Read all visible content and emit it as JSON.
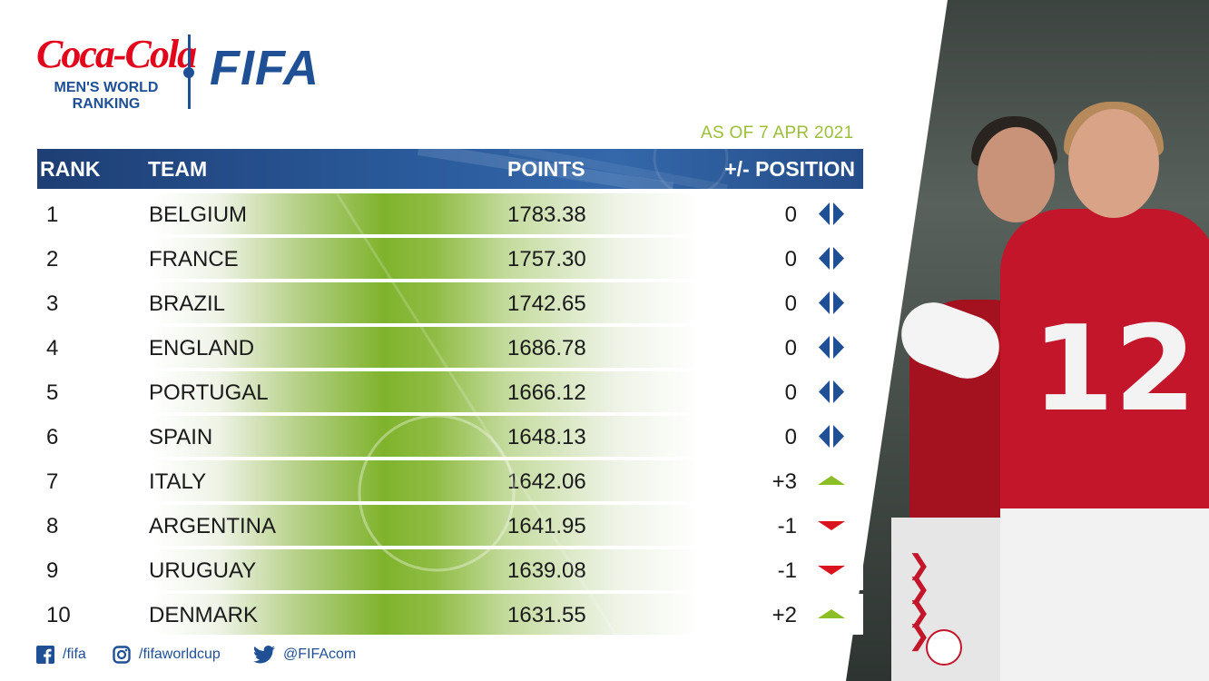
{
  "brand": {
    "sponsor": "Coca-Cola",
    "ranking_line1": "MEN'S WORLD",
    "ranking_line2": "RANKING",
    "org": "FIFA"
  },
  "as_of": "AS OF 7 APR 2021",
  "table": {
    "headers": {
      "rank": "RANK",
      "team": "TEAM",
      "points": "POINTS",
      "change": "+/- POSITION"
    },
    "rows": [
      {
        "rank": "1",
        "team": "BELGIUM",
        "points": "1783.38",
        "change": "0",
        "trend": "same"
      },
      {
        "rank": "2",
        "team": "FRANCE",
        "points": "1757.30",
        "change": "0",
        "trend": "same"
      },
      {
        "rank": "3",
        "team": "BRAZIL",
        "points": "1742.65",
        "change": "0",
        "trend": "same"
      },
      {
        "rank": "4",
        "team": "ENGLAND",
        "points": "1686.78",
        "change": "0",
        "trend": "same"
      },
      {
        "rank": "5",
        "team": "PORTUGAL",
        "points": "1666.12",
        "change": "0",
        "trend": "same"
      },
      {
        "rank": "6",
        "team": "SPAIN",
        "points": "1648.13",
        "change": "0",
        "trend": "same"
      },
      {
        "rank": "7",
        "team": "ITALY",
        "points": "1642.06",
        "change": "+3",
        "trend": "up"
      },
      {
        "rank": "8",
        "team": "ARGENTINA",
        "points": "1641.95",
        "change": "-1",
        "trend": "down"
      },
      {
        "rank": "9",
        "team": "URUGUAY",
        "points": "1639.08",
        "change": "-1",
        "trend": "down"
      },
      {
        "rank": "10",
        "team": "DENMARK",
        "points": "1631.55",
        "change": "+2",
        "trend": "up"
      }
    ]
  },
  "trend_colors": {
    "same": "#1f4f95",
    "up": "#8cbf26",
    "down": "#d9141e"
  },
  "social": {
    "facebook": "/fifa",
    "instagram": "/fifaworldcup",
    "twitter": "@FIFAcom"
  },
  "colors": {
    "brand_blue": "#1f4f95",
    "coke_red": "#e1061b",
    "accent_green": "#9bbf3a"
  }
}
